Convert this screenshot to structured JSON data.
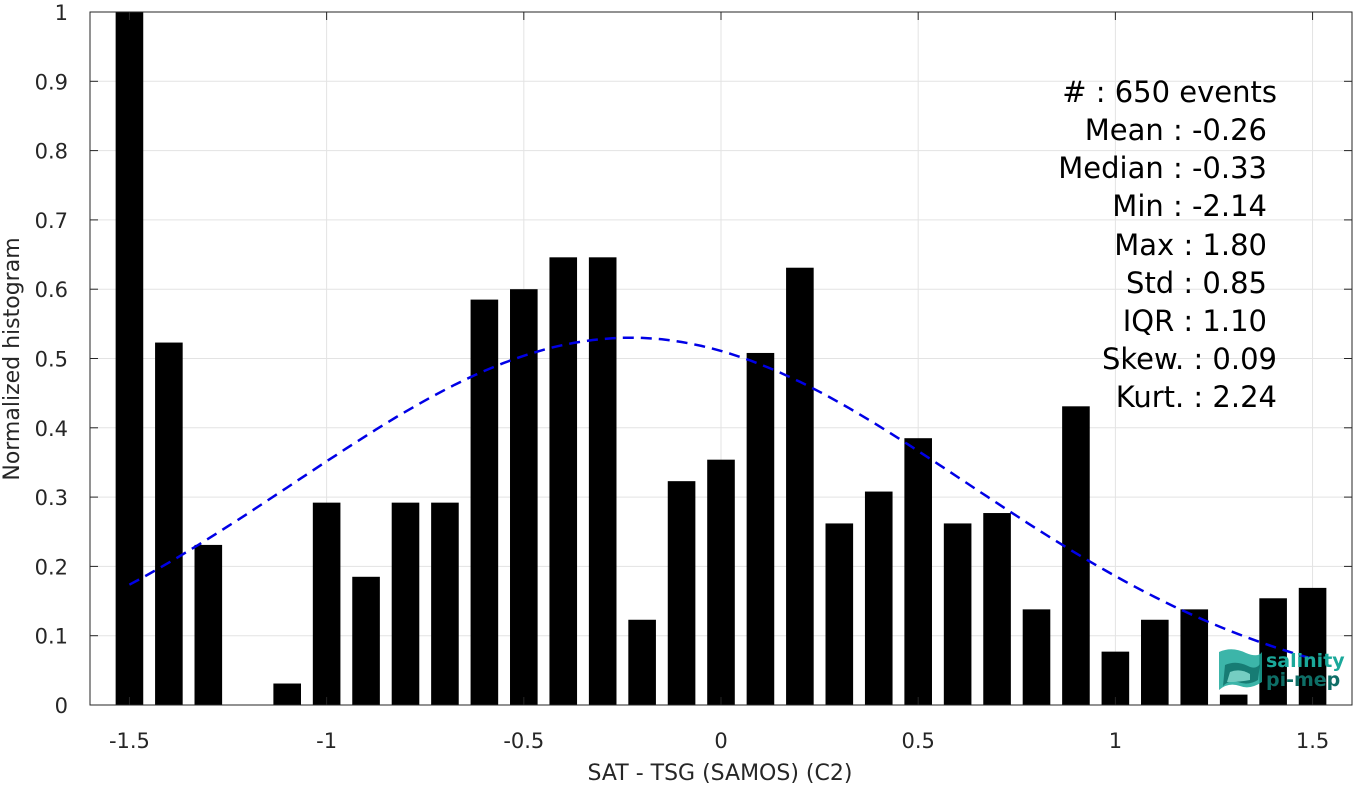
{
  "chart_data": {
    "type": "bar",
    "xlabel": "SAT - TSG (SAMOS) (C2)",
    "ylabel": "Normalized histogram",
    "xlim": [
      -1.6,
      1.6
    ],
    "ylim": [
      0,
      1
    ],
    "x_ticks": [
      -1.5,
      -1,
      -0.5,
      0,
      0.5,
      1,
      1.5
    ],
    "x_tick_labels": [
      "-1.5",
      "-1",
      "-0.5",
      "0",
      "0.5",
      "1",
      "1.5"
    ],
    "y_ticks": [
      0,
      0.1,
      0.2,
      0.3,
      0.4,
      0.5,
      0.6,
      0.7,
      0.8,
      0.9,
      1
    ],
    "y_tick_labels": [
      "0",
      "0.1",
      "0.2",
      "0.3",
      "0.4",
      "0.5",
      "0.6",
      "0.7",
      "0.8",
      "0.9",
      "1"
    ],
    "grid": true,
    "bar_width": 0.07,
    "bars": {
      "x": [
        -1.5,
        -1.4,
        -1.3,
        -1.2,
        -1.1,
        -1.0,
        -0.9,
        -0.8,
        -0.7,
        -0.6,
        -0.5,
        -0.4,
        -0.3,
        -0.2,
        -0.1,
        0.0,
        0.1,
        0.2,
        0.3,
        0.4,
        0.5,
        0.6,
        0.7,
        0.8,
        0.9,
        1.0,
        1.1,
        1.2,
        1.3,
        1.4,
        1.5
      ],
      "values": [
        1.0,
        0.523,
        0.231,
        0.0,
        0.031,
        0.292,
        0.185,
        0.292,
        0.292,
        0.585,
        0.6,
        0.646,
        0.646,
        0.123,
        0.323,
        0.354,
        0.508,
        0.631,
        0.262,
        0.308,
        0.385,
        0.262,
        0.277,
        0.138,
        0.431,
        0.077,
        0.123,
        0.138,
        0.015,
        0.154,
        0.169
      ]
    },
    "fit_curve": {
      "style": "dashed",
      "color": "#0000e6",
      "x_range": [
        -1.5,
        1.5
      ],
      "mean": -0.23,
      "std": 0.85,
      "peak": 0.53
    },
    "bar_color": "#000000"
  },
  "stats": [
    {
      "text": "#  : 650 events"
    },
    {
      "text": "Mean : -0.26"
    },
    {
      "text": "Median : -0.33"
    },
    {
      "text": "Min : -2.14"
    },
    {
      "text": "Max : 1.80"
    },
    {
      "text": "Std : 0.85"
    },
    {
      "text": "IQR : 1.10"
    },
    {
      "text": "Skew. : 0.09"
    },
    {
      "text": "Kurt. : 2.24"
    }
  ],
  "logo": {
    "line1": "salinity",
    "line2": "pi-mep",
    "color": "#1aa89a"
  }
}
